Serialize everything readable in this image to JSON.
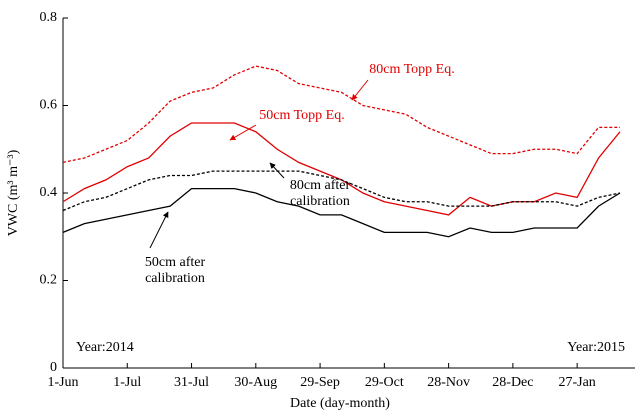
{
  "chart_data": {
    "type": "line",
    "xlabel": "Date (day-month)",
    "ylabel": "VWC (m³ m⁻³)",
    "annotations": [
      "Year:2014",
      "Year:2015"
    ],
    "x": [
      0,
      10,
      20,
      30,
      40,
      50,
      60,
      70,
      80,
      90,
      100,
      110,
      120,
      130,
      140,
      150,
      160,
      170,
      180,
      190,
      200,
      210,
      220,
      230,
      240,
      250,
      260
    ],
    "series": [
      {
        "name": "80cm Topp Eq.",
        "color": "#e00000",
        "dash": true,
        "values": [
          0.47,
          0.48,
          0.5,
          0.52,
          0.56,
          0.61,
          0.63,
          0.64,
          0.67,
          0.69,
          0.68,
          0.65,
          0.64,
          0.63,
          0.6,
          0.59,
          0.58,
          0.55,
          0.53,
          0.51,
          0.49,
          0.49,
          0.5,
          0.5,
          0.49,
          0.55,
          0.55
        ]
      },
      {
        "name": "50cm Topp Eq.",
        "color": "#e00000",
        "dash": false,
        "values": [
          0.38,
          0.41,
          0.43,
          0.46,
          0.48,
          0.53,
          0.56,
          0.56,
          0.56,
          0.54,
          0.5,
          0.47,
          0.45,
          0.43,
          0.4,
          0.38,
          0.37,
          0.36,
          0.35,
          0.39,
          0.37,
          0.38,
          0.38,
          0.4,
          0.39,
          0.48,
          0.54
        ]
      },
      {
        "name": "80cm after calibration",
        "color": "#000000",
        "dash": true,
        "values": [
          0.36,
          0.38,
          0.39,
          0.41,
          0.43,
          0.44,
          0.44,
          0.45,
          0.45,
          0.45,
          0.45,
          0.45,
          0.44,
          0.43,
          0.41,
          0.39,
          0.38,
          0.38,
          0.37,
          0.37,
          0.37,
          0.38,
          0.38,
          0.38,
          0.37,
          0.39,
          0.4
        ]
      },
      {
        "name": "50cm after calibration",
        "color": "#000000",
        "dash": false,
        "values": [
          0.31,
          0.33,
          0.34,
          0.35,
          0.36,
          0.37,
          0.41,
          0.41,
          0.41,
          0.4,
          0.38,
          0.37,
          0.35,
          0.35,
          0.33,
          0.31,
          0.31,
          0.31,
          0.3,
          0.32,
          0.31,
          0.31,
          0.32,
          0.32,
          0.32,
          0.37,
          0.4
        ]
      }
    ],
    "xlim": [
      0,
      267
    ],
    "xticks": [
      {
        "value": 0,
        "label": "1-Jun"
      },
      {
        "value": 30,
        "label": "1-Jul"
      },
      {
        "value": 60,
        "label": "31-Jul"
      },
      {
        "value": 90,
        "label": "30-Aug"
      },
      {
        "value": 120,
        "label": "29-Sep"
      },
      {
        "value": 150,
        "label": "29-Oct"
      },
      {
        "value": 180,
        "label": "28-Nov"
      },
      {
        "value": 210,
        "label": "28-Dec"
      },
      {
        "value": 240,
        "label": "27-Jan"
      }
    ],
    "ylim": [
      0,
      0.8
    ],
    "yticks": [
      0,
      0.2,
      0.4,
      0.6,
      0.8
    ]
  }
}
